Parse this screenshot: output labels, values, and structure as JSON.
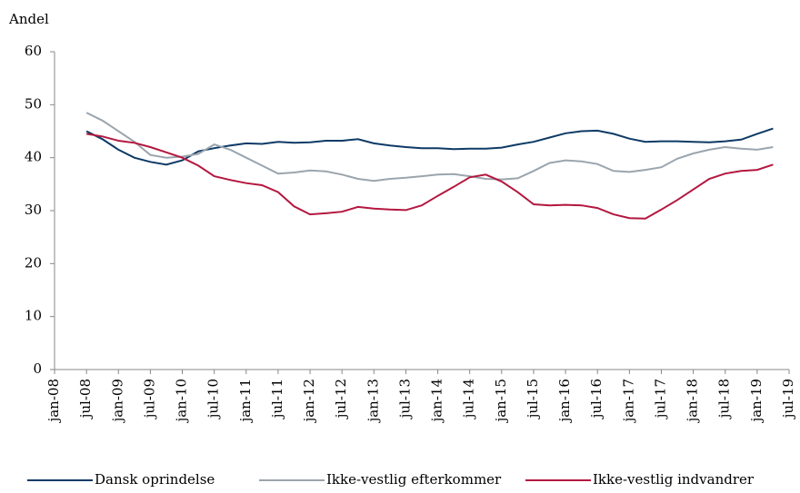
{
  "chart_data": {
    "type": "line",
    "ylabel": "Andel",
    "categories": [
      "jan-08",
      null,
      "jul-08",
      null,
      "jan-09",
      null,
      "jul-09",
      null,
      "jan-10",
      null,
      "jul-10",
      null,
      "jan-11",
      null,
      "jul-11",
      null,
      "jan-12",
      null,
      "jul-12",
      null,
      "jan-13",
      null,
      "jul-13",
      null,
      "jan-14",
      null,
      "jul-14",
      null,
      "jan-15",
      null,
      "jul-15",
      null,
      "jan-16",
      null,
      "jul-16",
      null,
      "jan-17",
      null,
      "jul-17",
      null,
      "jan-18",
      null,
      "jul-18",
      null,
      "jan-19",
      null,
      "jul-19"
    ],
    "series": [
      {
        "name": "Dansk oprindelse",
        "color": "#0e3a66",
        "values": [
          null,
          null,
          45,
          43.5,
          41.5,
          40,
          39.2,
          38.7,
          39.5,
          41.2,
          41.8,
          42.3,
          42.7,
          42.6,
          43,
          42.8,
          42.9,
          43.2,
          43.2,
          43.5,
          42.7,
          42.3,
          42,
          41.8,
          41.8,
          41.6,
          41.7,
          41.7,
          41.9,
          42.5,
          43,
          43.8,
          44.6,
          45,
          45.1,
          44.5,
          43.6,
          43,
          43.1,
          43.1,
          43,
          42.9,
          43.1,
          43.4,
          44.5,
          45.5,
          null
        ]
      },
      {
        "name": "Ikke-vestlig efterkommer",
        "color": "#9ba5ad",
        "values": [
          null,
          null,
          48.5,
          47,
          45,
          43,
          40.5,
          40,
          40.2,
          40.7,
          42.5,
          41.5,
          40,
          38.5,
          37,
          37.2,
          37.6,
          37.4,
          36.8,
          36,
          35.6,
          36,
          36.2,
          36.5,
          36.8,
          36.9,
          36.5,
          36,
          35.9,
          36.1,
          37.5,
          39,
          39.5,
          39.3,
          38.8,
          37.5,
          37.3,
          37.7,
          38.2,
          39.8,
          40.8,
          41.5,
          42,
          41.7,
          41.5,
          42,
          null
        ]
      },
      {
        "name": "Ikke-vestlig indvandrer",
        "color": "#b3173f",
        "values": [
          null,
          null,
          44.5,
          44,
          43.2,
          42.8,
          42,
          41,
          40,
          38.5,
          36.5,
          35.8,
          35.2,
          34.8,
          33.5,
          30.8,
          29.3,
          29.5,
          29.8,
          30.7,
          30.4,
          30.2,
          30.1,
          31,
          32.8,
          34.5,
          36.3,
          36.8,
          35.5,
          33.5,
          31.2,
          31,
          31.1,
          31,
          30.5,
          29.3,
          28.6,
          28.5,
          30.2,
          32,
          34,
          36,
          37,
          37.5,
          37.7,
          38.7,
          null
        ]
      }
    ],
    "ylim": [
      0,
      60
    ],
    "yticks": [
      0,
      10,
      20,
      30,
      40,
      50,
      60
    ],
    "grid": false,
    "legend": "bottom"
  }
}
